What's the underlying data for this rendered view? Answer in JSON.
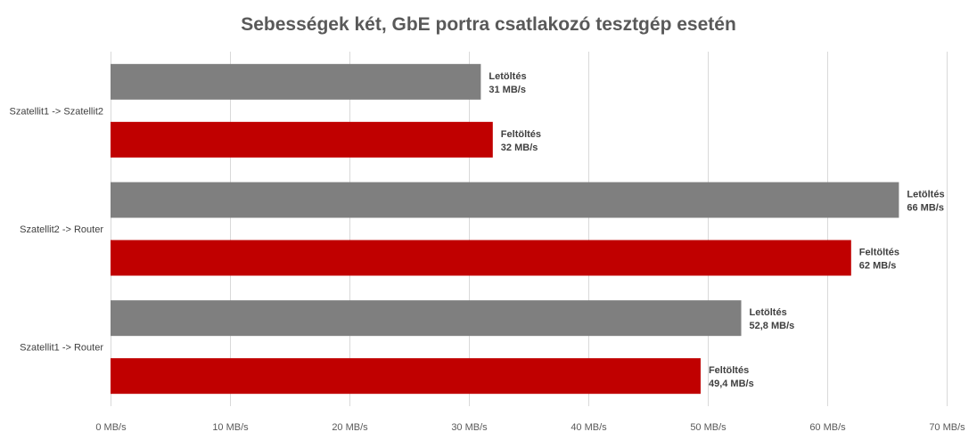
{
  "chart_data": {
    "type": "bar",
    "orientation": "horizontal",
    "title": "Sebességek két, GbE portra csatlakozó tesztgép esetén",
    "xlabel": "",
    "ylabel": "",
    "unit": "MB/s",
    "xlim": [
      0,
      70
    ],
    "x_ticks": [
      "0 MB/s",
      "10 MB/s",
      "20 MB/s",
      "30 MB/s",
      "40 MB/s",
      "50 MB/s",
      "60 MB/s",
      "70 MB/s"
    ],
    "grid": true,
    "legend": "none",
    "categories": [
      "Szatellit1 -> Szatellit2",
      "Szatellit2 -> Router",
      "Szatellit1 -> Router"
    ],
    "series": [
      {
        "name": "Letöltés",
        "color": "#7f7f7f",
        "values": [
          31,
          66,
          52.8
        ],
        "labels": [
          "31 MB/s",
          "66 MB/s",
          "52,8 MB/s"
        ]
      },
      {
        "name": "Feltöltés",
        "color": "#c00000",
        "values": [
          32,
          62,
          49.4
        ],
        "labels": [
          "32 MB/s",
          "62 MB/s",
          "49,4 MB/s"
        ]
      }
    ]
  }
}
